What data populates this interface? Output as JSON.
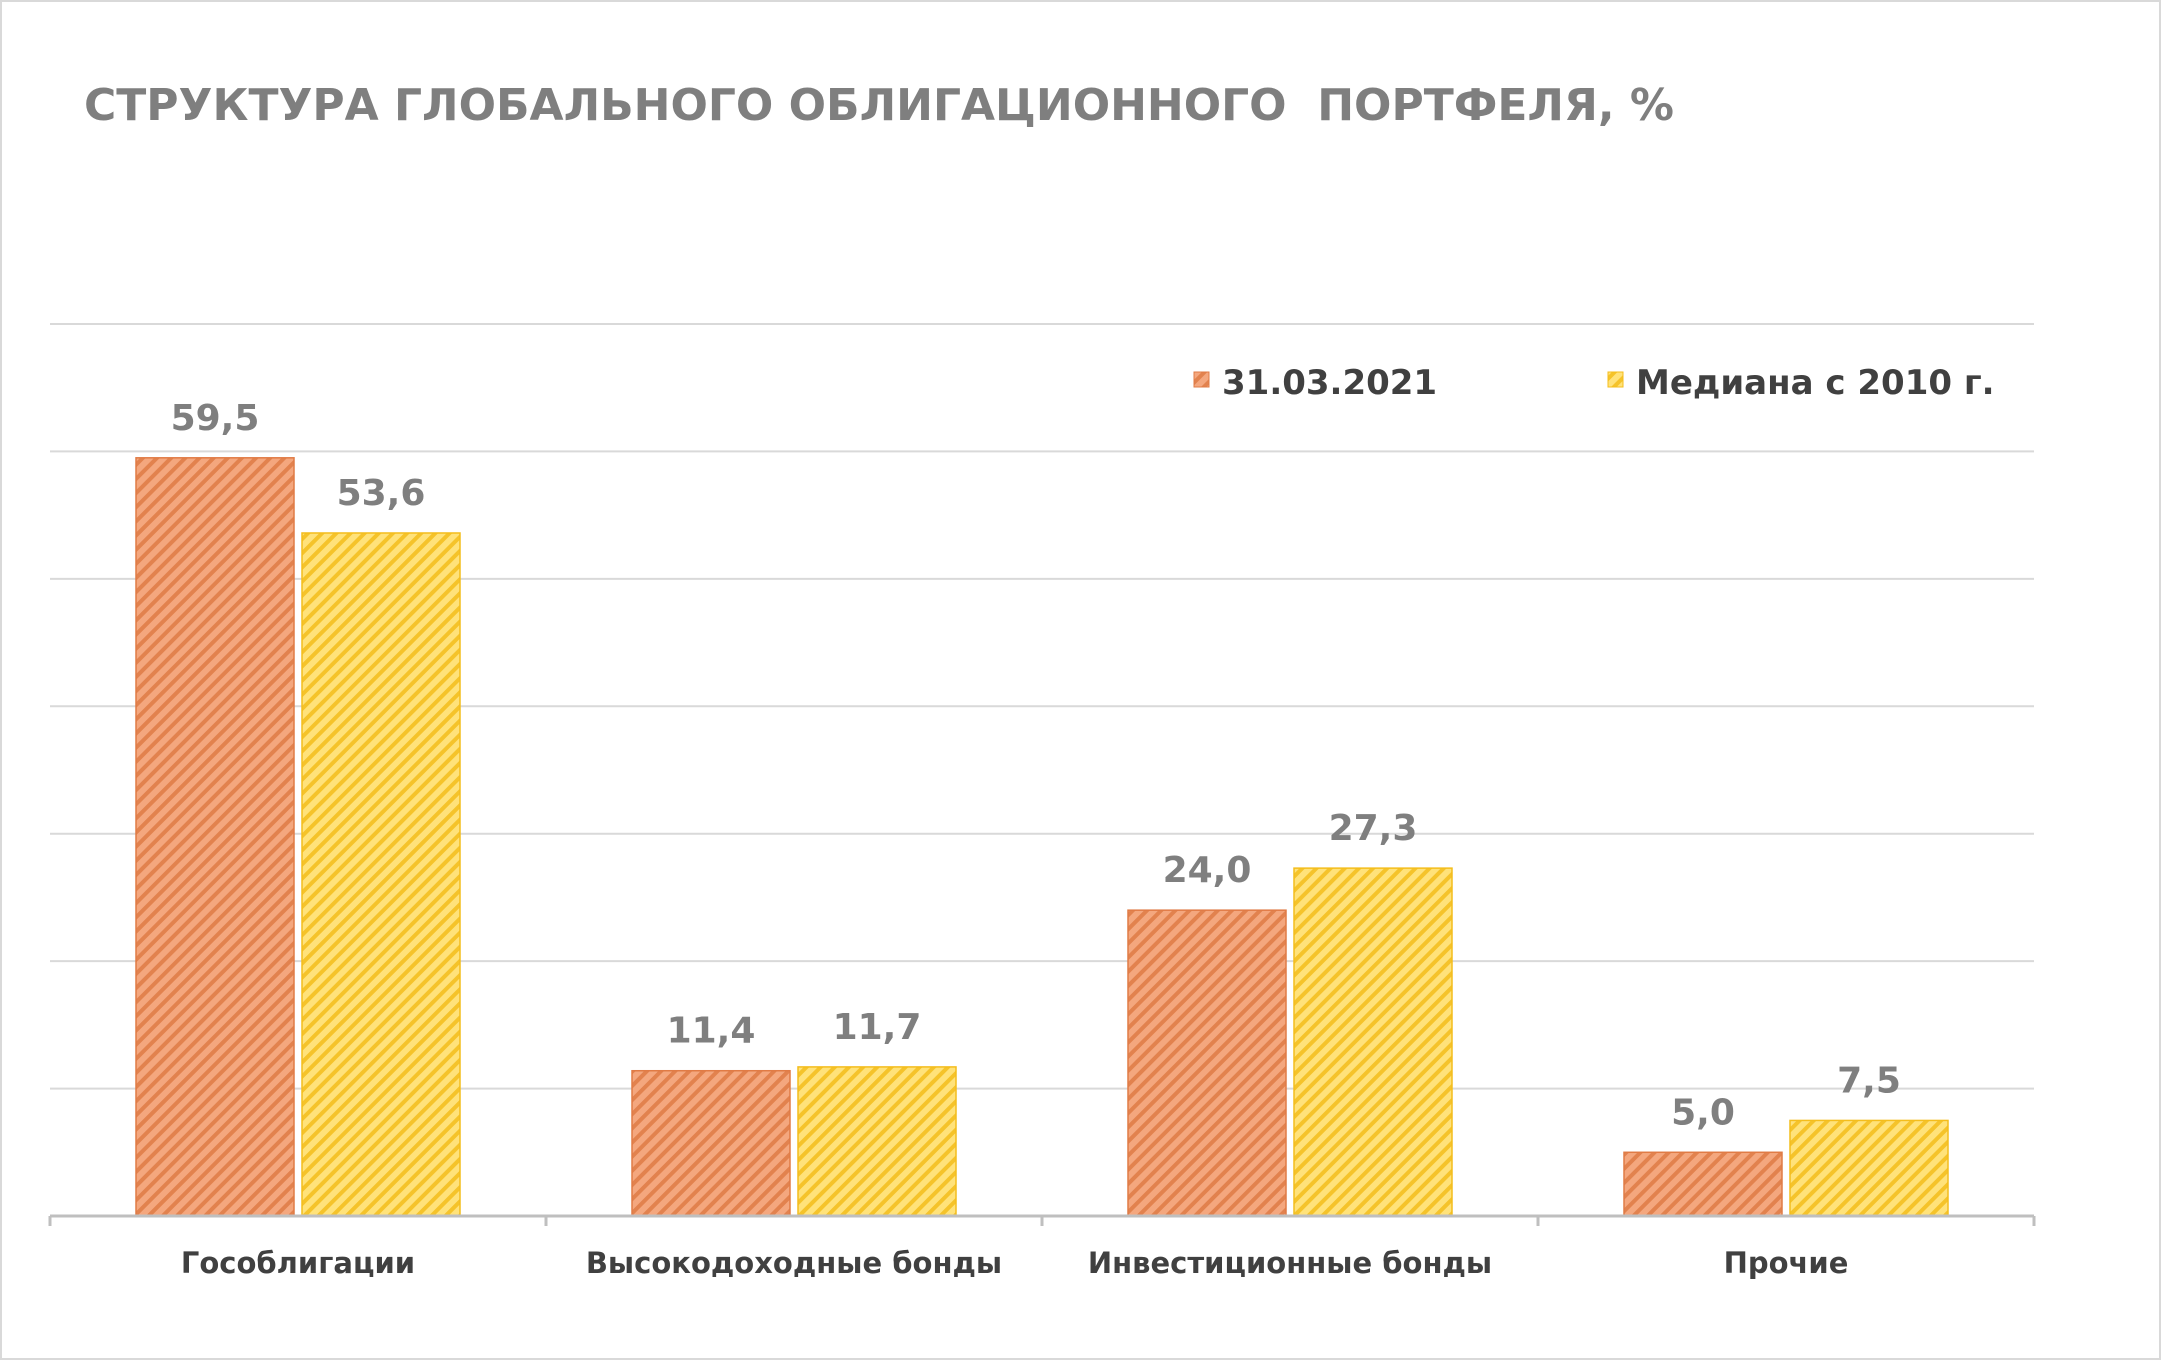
{
  "chart_data": {
    "type": "bar",
    "title": "СТРУКТУРА ГЛОБАЛЬНОГО ОБЛИГАЦИОННОГО  ПОРТФЕЛЯ, %",
    "categories": [
      "Гособлигации",
      "Высокодоходные бонды",
      "Инвестиционные бонды",
      "Прочие"
    ],
    "series": [
      {
        "name": "31.03.2021",
        "values": [
          59.5,
          11.4,
          24.0,
          5.0
        ],
        "labels": [
          "59,5",
          "11,4",
          "24,0",
          "5,0"
        ],
        "color": "#f4a77e",
        "hatch_color": "#e07b45",
        "pattern": "diagonal-hatch"
      },
      {
        "name": "Медиана с 2010 г.",
        "values": [
          53.6,
          11.7,
          27.3,
          7.5
        ],
        "labels": [
          "53,6",
          "11,7",
          "27,3",
          "7,5"
        ],
        "color": "#ffe27a",
        "hatch_color": "#f4bd1c",
        "pattern": "diagonal-hatch"
      }
    ],
    "ylim": [
      0,
      70
    ],
    "gridlines": true,
    "gridline_step": 10,
    "y_axis_visible": false,
    "legend_position": "top-right",
    "data_labels": true
  }
}
